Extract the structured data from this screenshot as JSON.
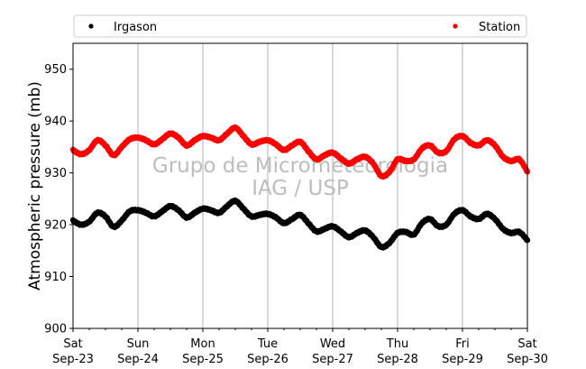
{
  "chart_data": {
    "type": "scatter",
    "ylabel": "Atmospheric pressure (mb)",
    "ylim": [
      900,
      955
    ],
    "yticks": [
      900,
      910,
      920,
      930,
      940,
      950
    ],
    "xlim": [
      "2023-09-23",
      "2023-09-30"
    ],
    "xticks": [
      {
        "date": "2023-09-23",
        "day": "Sat",
        "label": "Sep-23"
      },
      {
        "date": "2023-09-24",
        "day": "Sun",
        "label": "Sep-24"
      },
      {
        "date": "2023-09-25",
        "day": "Mon",
        "label": "Sep-25"
      },
      {
        "date": "2023-09-26",
        "day": "Tue",
        "label": "Sep-26"
      },
      {
        "date": "2023-09-27",
        "day": "Wed",
        "label": "Sep-27"
      },
      {
        "date": "2023-09-28",
        "day": "Thu",
        "label": "Sep-28"
      },
      {
        "date": "2023-09-29",
        "day": "Fri",
        "label": "Sep-29"
      },
      {
        "date": "2023-09-30",
        "day": "Sat",
        "label": "Sep-30"
      }
    ],
    "grid": "vertical",
    "legend_position": "top",
    "watermark": [
      "Grupo de Micrometeorologia",
      "IAG / USP"
    ],
    "series": [
      {
        "name": "Irgason",
        "color": "#000000",
        "x": [
          "2023-09-23T00:00",
          "2023-09-23T03:00",
          "2023-09-23T06:00",
          "2023-09-23T09:00",
          "2023-09-23T12:00",
          "2023-09-23T15:00",
          "2023-09-23T18:00",
          "2023-09-23T21:00",
          "2023-09-24T00:00",
          "2023-09-24T03:00",
          "2023-09-24T06:00",
          "2023-09-24T09:00",
          "2023-09-24T12:00",
          "2023-09-24T15:00",
          "2023-09-24T18:00",
          "2023-09-24T21:00",
          "2023-09-25T00:00",
          "2023-09-25T03:00",
          "2023-09-25T06:00",
          "2023-09-25T09:00",
          "2023-09-25T12:00",
          "2023-09-25T15:00",
          "2023-09-25T18:00",
          "2023-09-25T21:00",
          "2023-09-26T00:00",
          "2023-09-26T03:00",
          "2023-09-26T06:00",
          "2023-09-26T09:00",
          "2023-09-26T12:00",
          "2023-09-26T15:00",
          "2023-09-26T18:00",
          "2023-09-26T21:00",
          "2023-09-27T00:00",
          "2023-09-27T03:00",
          "2023-09-27T06:00",
          "2023-09-27T09:00",
          "2023-09-27T12:00",
          "2023-09-27T15:00",
          "2023-09-27T18:00",
          "2023-09-27T21:00",
          "2023-09-28T00:00",
          "2023-09-28T03:00",
          "2023-09-28T06:00",
          "2023-09-28T09:00",
          "2023-09-28T12:00",
          "2023-09-28T15:00",
          "2023-09-28T18:00",
          "2023-09-28T21:00",
          "2023-09-29T00:00",
          "2023-09-29T03:00",
          "2023-09-29T06:00",
          "2023-09-29T09:00",
          "2023-09-29T12:00",
          "2023-09-29T15:00",
          "2023-09-29T18:00",
          "2023-09-29T21:00",
          "2023-09-30T00:00"
        ],
        "y": [
          920.8,
          920.0,
          920.6,
          922.3,
          921.6,
          919.6,
          920.8,
          922.6,
          922.8,
          922.3,
          921.6,
          922.6,
          923.6,
          922.8,
          921.4,
          922.3,
          923.1,
          922.8,
          922.3,
          923.6,
          924.6,
          923.1,
          921.6,
          921.9,
          922.1,
          921.4,
          920.3,
          921.1,
          921.9,
          920.3,
          918.7,
          919.2,
          919.7,
          918.7,
          917.6,
          918.4,
          918.9,
          917.6,
          915.7,
          916.5,
          918.4,
          918.6,
          918.1,
          920.3,
          921.1,
          919.7,
          920.0,
          922.1,
          922.8,
          921.6,
          921.1,
          922.1,
          921.1,
          919.2,
          918.4,
          918.6,
          917.0
        ]
      },
      {
        "name": "Station",
        "color": "#ff0000",
        "x": [
          "2023-09-23T00:00",
          "2023-09-23T03:00",
          "2023-09-23T06:00",
          "2023-09-23T09:00",
          "2023-09-23T12:00",
          "2023-09-23T15:00",
          "2023-09-23T18:00",
          "2023-09-23T21:00",
          "2023-09-24T00:00",
          "2023-09-24T03:00",
          "2023-09-24T06:00",
          "2023-09-24T09:00",
          "2023-09-24T12:00",
          "2023-09-24T15:00",
          "2023-09-24T18:00",
          "2023-09-24T21:00",
          "2023-09-25T00:00",
          "2023-09-25T03:00",
          "2023-09-25T06:00",
          "2023-09-25T09:00",
          "2023-09-25T12:00",
          "2023-09-25T15:00",
          "2023-09-25T18:00",
          "2023-09-25T21:00",
          "2023-09-26T00:00",
          "2023-09-26T03:00",
          "2023-09-26T06:00",
          "2023-09-26T09:00",
          "2023-09-26T12:00",
          "2023-09-26T15:00",
          "2023-09-26T18:00",
          "2023-09-26T21:00",
          "2023-09-27T00:00",
          "2023-09-27T03:00",
          "2023-09-27T06:00",
          "2023-09-27T09:00",
          "2023-09-27T12:00",
          "2023-09-27T15:00",
          "2023-09-27T18:00",
          "2023-09-27T21:00",
          "2023-09-28T00:00",
          "2023-09-28T03:00",
          "2023-09-28T06:00",
          "2023-09-28T09:00",
          "2023-09-28T12:00",
          "2023-09-28T15:00",
          "2023-09-28T18:00",
          "2023-09-28T21:00",
          "2023-09-29T00:00",
          "2023-09-29T03:00",
          "2023-09-29T06:00",
          "2023-09-29T09:00",
          "2023-09-29T12:00",
          "2023-09-29T15:00",
          "2023-09-29T18:00",
          "2023-09-29T21:00",
          "2023-09-30T00:00"
        ],
        "y": [
          934.4,
          933.6,
          934.4,
          936.3,
          935.3,
          933.4,
          935.0,
          936.5,
          936.8,
          936.3,
          935.5,
          936.5,
          937.6,
          936.8,
          935.3,
          936.3,
          937.1,
          936.8,
          936.3,
          937.6,
          938.7,
          937.1,
          935.5,
          936.0,
          936.3,
          935.5,
          934.4,
          935.3,
          936.0,
          934.2,
          932.6,
          933.4,
          933.9,
          932.8,
          931.8,
          932.6,
          933.1,
          931.8,
          929.4,
          930.2,
          932.6,
          932.3,
          932.6,
          934.7,
          935.3,
          933.9,
          934.2,
          936.5,
          937.1,
          935.8,
          935.3,
          936.3,
          935.3,
          933.1,
          932.3,
          932.6,
          930.2
        ]
      }
    ]
  }
}
